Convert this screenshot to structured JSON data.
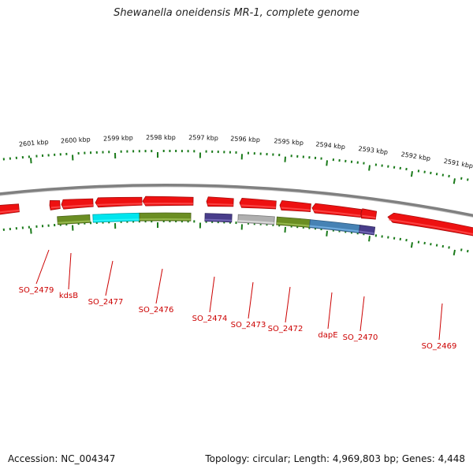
{
  "title": "Shewanella oneidensis MR-1, complete genome",
  "accession_label": "Accession: NC_004347",
  "topology_label": "Topology: circular; Length: 4,969,803 bp; Genes: 4,448",
  "scale_labels": [
    "2601 kbp",
    "2600 kbp",
    "2599 kbp",
    "2598 kbp",
    "2597 kbp",
    "2596 kbp",
    "2595 kbp",
    "2594 kbp",
    "2593 kbp",
    "2592 kbp",
    "2591 kbp"
  ],
  "genes": [
    {
      "label": "",
      "strand": "reverse",
      "color": "#ee1111"
    },
    {
      "label": "",
      "strand": "reverse",
      "color": "#ee1111"
    },
    {
      "label": "",
      "strand": "reverse",
      "color": "#ee1111"
    },
    {
      "label": "",
      "strand": "reverse",
      "color": "#ee1111"
    },
    {
      "label": "",
      "strand": "reverse",
      "color": "#ee1111"
    },
    {
      "label": "",
      "strand": "reverse",
      "color": "#ee1111"
    },
    {
      "label": "",
      "strand": "reverse",
      "color": "#ee1111"
    },
    {
      "label": "",
      "strand": "reverse",
      "color": "#ee1111"
    },
    {
      "label": "",
      "strand": "reverse",
      "color": "#ee1111"
    },
    {
      "label": "",
      "strand": "reverse",
      "color": "#ee1111"
    },
    {
      "label": "",
      "strand": "reverse",
      "color": "#ee1111"
    },
    {
      "label": "kdsB",
      "strand": "cog",
      "color": "#6b8e23"
    },
    {
      "label": "SO_2477",
      "strand": "cog",
      "color": "#00e5ee"
    },
    {
      "label": "SO_2476",
      "strand": "cog",
      "color": "#6b8e23"
    },
    {
      "label": "SO_2474",
      "strand": "cog",
      "color": "#483d8b"
    },
    {
      "label": "SO_2473",
      "strand": "cog",
      "color": "#b0b0b0"
    },
    {
      "label": "SO_2472",
      "strand": "cog",
      "color": "#6b8e23"
    },
    {
      "label": "dapE",
      "strand": "cog",
      "color": "#4682b4"
    },
    {
      "label": "SO_2470",
      "strand": "cog",
      "color": "#483d8b"
    }
  ],
  "callouts": [
    {
      "label": "SO_2479"
    },
    {
      "label": "kdsB"
    },
    {
      "label": "SO_2477"
    },
    {
      "label": "SO_2476"
    },
    {
      "label": "SO_2474"
    },
    {
      "label": "SO_2473"
    },
    {
      "label": "SO_2472"
    },
    {
      "label": "dapE"
    },
    {
      "label": "SO_2470"
    },
    {
      "label": "SO_2469"
    }
  ],
  "colors": {
    "backbone": "#808080",
    "tick": "#1a7a1a",
    "callout": "#cc0000"
  }
}
